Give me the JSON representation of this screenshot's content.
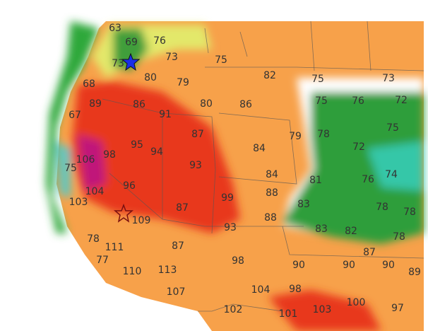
{
  "labels": [
    63,
    69,
    76,
    73,
    75,
    73,
    80,
    79,
    82,
    75,
    73,
    68,
    89,
    86,
    91,
    80,
    86,
    75,
    76,
    72,
    67,
    87,
    79,
    78,
    75,
    98,
    95,
    94,
    84,
    72,
    106,
    75,
    93,
    84,
    81,
    76,
    74,
    96,
    99,
    88,
    104,
    103,
    87,
    83,
    78,
    78,
    109,
    88,
    93,
    83,
    82,
    78,
    78,
    111,
    87,
    87,
    77,
    98,
    90,
    90,
    90,
    89,
    110,
    113,
    104,
    98,
    107,
    102,
    101,
    103,
    100,
    97
  ]
}
